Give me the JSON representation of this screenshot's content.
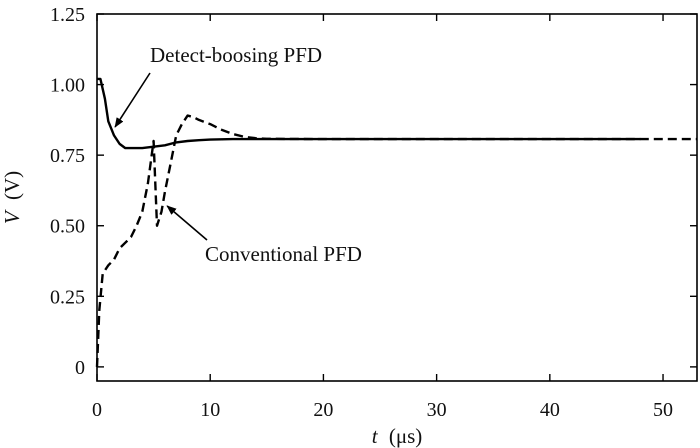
{
  "chart_data": {
    "type": "line",
    "title": "",
    "xlabel": {
      "var": "t",
      "unit": "(μs)"
    },
    "ylabel": {
      "var": "V",
      "unit": "(V)"
    },
    "xlim": [
      0,
      53
    ],
    "ylim": [
      -0.05,
      1.25
    ],
    "x_ticks": [
      0,
      10,
      20,
      30,
      40,
      50
    ],
    "y_ticks": [
      0,
      0.25,
      0.5,
      0.75,
      1.0,
      1.25
    ],
    "y_tick_labels": [
      "0",
      "0.25",
      "0.50",
      "0.75",
      "1.00",
      "1.25"
    ],
    "grid": false,
    "series": [
      {
        "name": "Detect-boosing PFD",
        "style": "solid",
        "color": "#000000",
        "x": [
          0,
          0.3,
          0.7,
          1.0,
          1.5,
          2.0,
          2.5,
          3.0,
          3.5,
          4.0,
          5.0,
          6.0,
          7.0,
          8.0,
          9.0,
          10.0,
          12.0,
          15.0,
          20.0,
          30.0,
          40.0,
          48.0
        ],
        "y": [
          1.02,
          1.02,
          0.95,
          0.87,
          0.82,
          0.79,
          0.775,
          0.775,
          0.775,
          0.775,
          0.78,
          0.785,
          0.795,
          0.8,
          0.803,
          0.805,
          0.807,
          0.807,
          0.807,
          0.807,
          0.807,
          0.807
        ]
      },
      {
        "name": "Conventional PFD",
        "style": "dashed",
        "color": "#000000",
        "x": [
          0,
          0.2,
          0.5,
          1.0,
          1.5,
          2.0,
          2.5,
          3.0,
          3.5,
          4.0,
          4.5,
          5.0,
          5.3,
          5.7,
          6.0,
          6.5,
          7.0,
          7.5,
          8.0,
          8.5,
          9.0,
          10.0,
          11.0,
          12.0,
          13.0,
          14.0,
          15.0,
          20.0,
          30.0,
          40.0,
          50.0,
          52.0,
          53.0
        ],
        "y": [
          0.0,
          0.2,
          0.33,
          0.36,
          0.38,
          0.42,
          0.44,
          0.46,
          0.5,
          0.55,
          0.65,
          0.8,
          0.5,
          0.55,
          0.62,
          0.72,
          0.82,
          0.86,
          0.89,
          0.885,
          0.875,
          0.86,
          0.84,
          0.825,
          0.815,
          0.81,
          0.808,
          0.807,
          0.807,
          0.807,
          0.807,
          0.807,
          0.807
        ]
      }
    ],
    "annotations": [
      {
        "text": "Detect-boosing PFD",
        "target_series": "Detect-boosing PFD",
        "point": [
          1.6,
          0.85
        ]
      },
      {
        "text": "Conventional PFD",
        "target_series": "Conventional PFD",
        "point": [
          6.2,
          0.57
        ]
      }
    ]
  }
}
